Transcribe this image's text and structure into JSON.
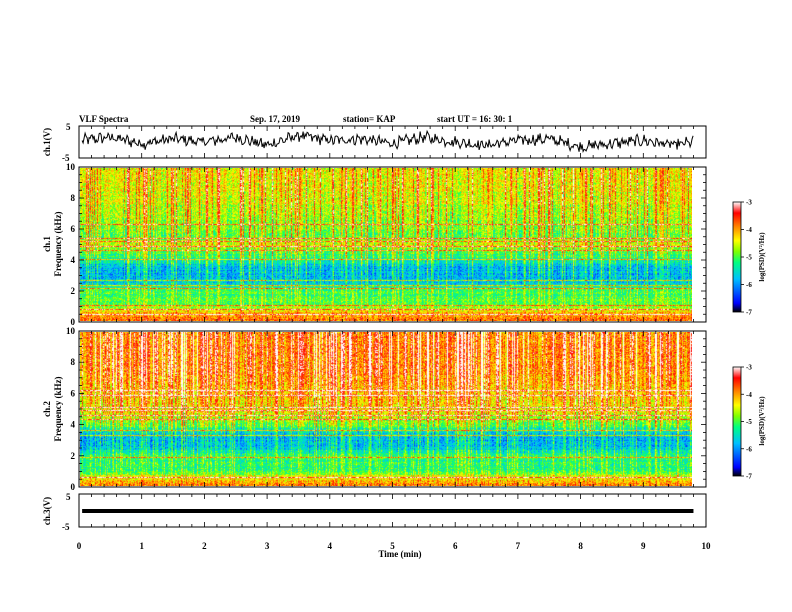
{
  "header": {
    "title": "VLF Spectra",
    "date": "Sep. 17, 2019",
    "station": "station= KAP",
    "start_ut": "start  UT  =   16: 30: 1"
  },
  "colors": {
    "colormap": [
      "#000000",
      "#0000ff",
      "#00c0ff",
      "#00ff80",
      "#80ff00",
      "#ffff00",
      "#ff8000",
      "#ff0000",
      "#ffffff"
    ]
  },
  "chart_data": [
    {
      "type": "line",
      "name": "ch1-waveform",
      "ylabel": "ch.1(V)",
      "ylim": [
        -5,
        5
      ],
      "yticks": [
        "5",
        "-5"
      ],
      "xlim": [
        0,
        10
      ],
      "x_sample_min": [
        0,
        0.5,
        1.0,
        1.5,
        2.0,
        2.5,
        3.0,
        3.5,
        4.0,
        4.5,
        5.0,
        5.5,
        6.0,
        6.5,
        7.0,
        7.5,
        8.0,
        8.5,
        9.0,
        9.5,
        9.8
      ],
      "y_approx_V": [
        0.5,
        1.5,
        -0.5,
        1.0,
        0.0,
        1.5,
        -1.0,
        2.0,
        0.5,
        1.0,
        -0.5,
        1.5,
        0.0,
        -1.0,
        0.5,
        1.0,
        -1.5,
        -0.5,
        0.5,
        -1.0,
        0.0
      ]
    },
    {
      "type": "heatmap",
      "name": "ch1-spectrogram",
      "ylabel": "ch.1",
      "ylabel2": "Frequency  (kHz)",
      "ylim": [
        0,
        10
      ],
      "yticks": [
        "0",
        "2",
        "4",
        "6",
        "8",
        "10"
      ],
      "xlim": [
        0,
        10
      ],
      "color_scale": {
        "label": "log(PSD)(V²/Hz)",
        "min": -7,
        "max": -3,
        "ticks": [
          "-3",
          "-4",
          "-5",
          "-6",
          "-7"
        ]
      },
      "band_profile_kHz": [
        0,
        0.5,
        1,
        2,
        2.5,
        3,
        3.5,
        4,
        4.5,
        5,
        5.5,
        6,
        7,
        8,
        9,
        10
      ],
      "band_profile_logpsd": [
        -3.8,
        -4.2,
        -5.0,
        -5.1,
        -5.7,
        -5.8,
        -5.8,
        -5.3,
        -5.0,
        -4.5,
        -4.9,
        -4.8,
        -4.6,
        -4.5,
        -4.4,
        -4.4
      ],
      "horizontal_lines_kHz": [
        0.4,
        0.7,
        1.0,
        2.1,
        2.3,
        2.6,
        4.0,
        4.6,
        4.9,
        5.2,
        5.4,
        6.3
      ],
      "burst_density": 0.35
    },
    {
      "type": "heatmap",
      "name": "ch2-spectrogram",
      "ylabel": "ch.2",
      "ylabel2": "Frequency  (kHz)",
      "ylim": [
        0,
        10
      ],
      "yticks": [
        "0",
        "2",
        "4",
        "6",
        "8",
        "10"
      ],
      "xlim": [
        0,
        10
      ],
      "color_scale": {
        "label": "log(PSD)(V²/Hz)",
        "min": -7,
        "max": -3,
        "ticks": [
          "-3",
          "-4",
          "-5",
          "-6",
          "-7"
        ]
      },
      "band_profile_kHz": [
        0,
        0.5,
        1,
        2,
        2.5,
        3,
        3.5,
        4,
        4.5,
        5,
        5.5,
        6,
        7,
        8,
        9,
        10
      ],
      "band_profile_logpsd": [
        -4.0,
        -4.4,
        -5.2,
        -5.3,
        -5.8,
        -5.9,
        -5.6,
        -5.0,
        -4.6,
        -4.4,
        -4.3,
        -4.2,
        -4.0,
        -3.9,
        -3.9,
        -3.9
      ],
      "horizontal_lines_kHz": [
        0.5,
        1.8,
        3.3,
        3.6,
        4.3,
        4.6,
        4.9,
        5.1,
        5.9,
        6.2
      ],
      "burst_density": 0.55
    },
    {
      "type": "line",
      "name": "ch3-waveform",
      "ylabel": "ch.3(V)",
      "ylim": [
        -5,
        5
      ],
      "yticks": [
        "5",
        "-5"
      ],
      "xlim": [
        0,
        10
      ],
      "x": [
        0.05,
        9.8
      ],
      "y": [
        0,
        0
      ]
    }
  ],
  "xaxis": {
    "label": "Time  (min)",
    "ticks": [
      "0",
      "1",
      "2",
      "3",
      "4",
      "5",
      "6",
      "7",
      "8",
      "9",
      "10"
    ]
  }
}
